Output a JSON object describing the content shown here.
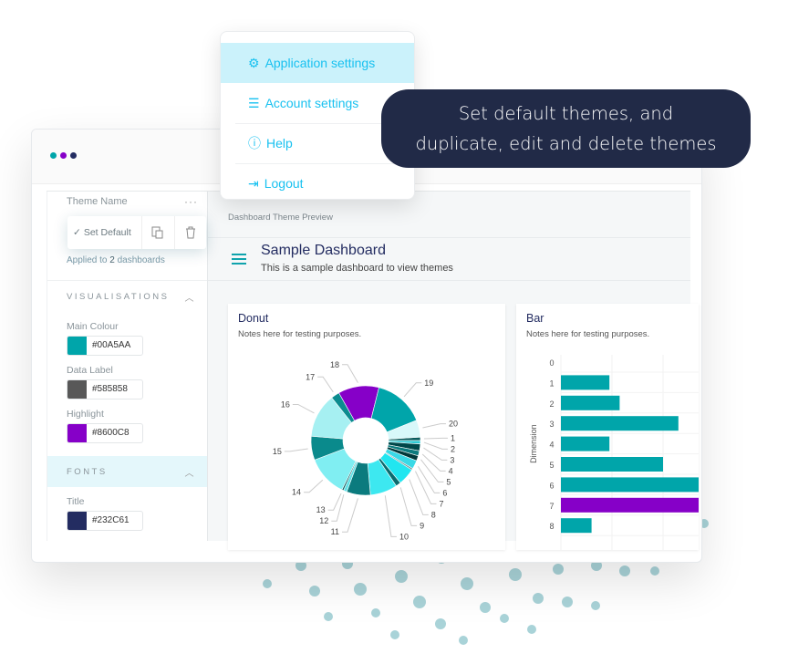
{
  "window": {
    "dot_colors": [
      "#00A5AA",
      "#8600C8",
      "#232C61"
    ]
  },
  "menu": {
    "items": [
      {
        "label": "Application settings",
        "icon": "gear-icon",
        "active": true
      },
      {
        "label": "Account settings",
        "icon": "sliders-icon"
      },
      {
        "label": "Help",
        "icon": "help-circle-icon"
      },
      {
        "label": "Logout",
        "icon": "logout-icon"
      }
    ]
  },
  "tooltip": {
    "line1": "Set default themes, and",
    "line2": "duplicate, edit and delete themes"
  },
  "sidebar": {
    "theme_name": "Theme Name",
    "more": "···",
    "popup": {
      "set_default": "Set Default"
    },
    "applied_prefix": "Applied to ",
    "applied_count": "2",
    "applied_suffix": " dashboards",
    "visualisations": {
      "title": "VISUALISATIONS",
      "fields": [
        {
          "label": "Main Colour",
          "value": "#00A5AA",
          "color": "#00A5AA"
        },
        {
          "label": "Data Label",
          "value": "#585858",
          "color": "#585858"
        },
        {
          "label": "Highlight",
          "value": "#8600C8",
          "color": "#8600C8"
        }
      ]
    },
    "fonts": {
      "title": "FONTS",
      "fields": [
        {
          "label": "Title",
          "value": "#232C61",
          "color": "#232C61"
        }
      ]
    }
  },
  "main": {
    "preview_label": "Dashboard Theme Preview",
    "dashboard_title": "Sample Dashboard",
    "dashboard_subtitle": "This is a sample dashboard to view themes",
    "cards": [
      {
        "title": "Donut",
        "note": "Notes here for testing purposes."
      },
      {
        "title": "Bar",
        "note": "Notes here for testing purposes."
      }
    ]
  },
  "chart_data": [
    {
      "type": "pie",
      "variant": "donut",
      "labels": [
        "1",
        "2",
        "3",
        "4",
        "5",
        "6",
        "7",
        "8",
        "9",
        "10",
        "11",
        "12",
        "13",
        "14",
        "15",
        "16",
        "17",
        "18",
        "19",
        "20"
      ],
      "values": [
        1,
        1,
        2,
        1.5,
        1.5,
        2.5,
        0.5,
        5,
        1.5,
        8,
        7,
        1,
        0.5,
        12,
        7,
        13,
        2.5,
        12,
        15,
        5
      ],
      "colors": [
        "#0a5c5e",
        "#2ec9d4",
        "#00474a",
        "#0b7b7e",
        "#00393b",
        "#3ad9e6",
        "#6b8f90",
        "#22e6f0",
        "#0a6b6e",
        "#3de8f0",
        "#0b7b7e",
        "#5fe0e6",
        "#0a5c5e",
        "#80eef2",
        "#0a8a8c",
        "#a6f0f2",
        "#0b8c8f",
        "#8600C8",
        "#00A5AA",
        "#d8f8fa"
      ]
    },
    {
      "type": "bar",
      "orientation": "horizontal",
      "ylabel": "Dimension",
      "categories": [
        "0",
        "1",
        "2",
        "3",
        "4",
        "5",
        "6",
        "7",
        "8"
      ],
      "values": [
        0,
        0.95,
        1.15,
        2.3,
        0.95,
        2.0,
        2.8,
        2.8,
        0.6
      ],
      "highlight_index": 7,
      "main_color": "#00A5AA",
      "highlight_color": "#8600C8"
    }
  ]
}
